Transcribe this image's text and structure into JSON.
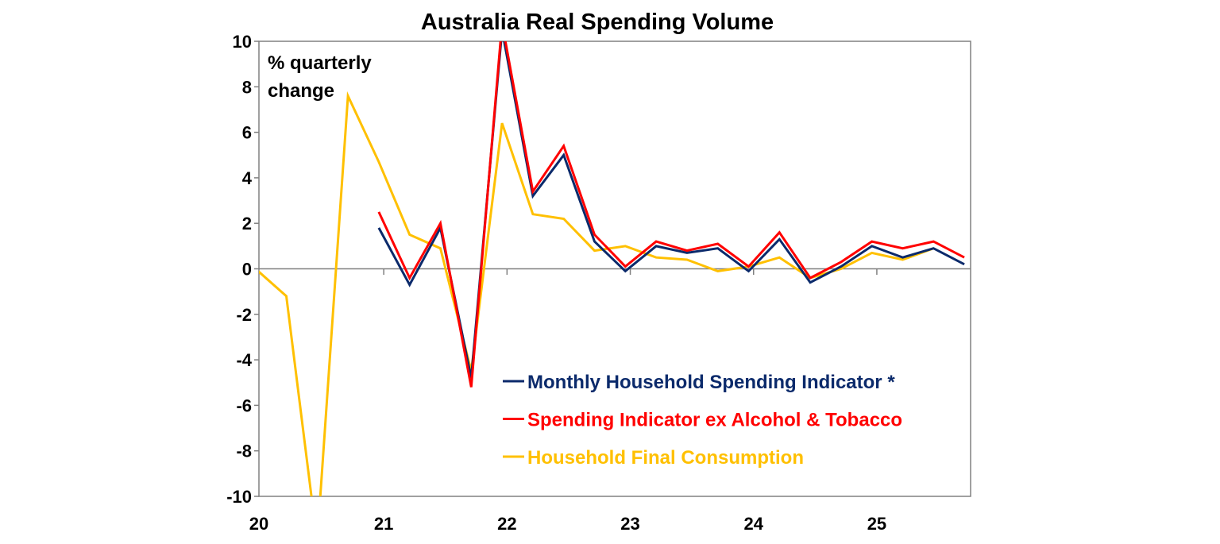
{
  "chart_data": {
    "type": "line",
    "title": "Australia Real Spending Volume",
    "ylabel": "% quarterly change",
    "ylabel_lines": [
      "% quarterly",
      "change"
    ],
    "ylim": [
      -10,
      10
    ],
    "yticks": [
      10,
      8,
      6,
      4,
      2,
      0,
      -2,
      -4,
      -6,
      -8,
      -10
    ],
    "xtick_labels": [
      "20",
      "21",
      "22",
      "23",
      "24",
      "25"
    ],
    "grid": false,
    "legend_placement": "bottom-right",
    "x": [
      "Dec-19",
      "Mar-20",
      "Jun-20",
      "Sep-20",
      "Dec-20",
      "Mar-21",
      "Jun-21",
      "Sep-21",
      "Dec-21",
      "Mar-22",
      "Jun-22",
      "Sep-22",
      "Dec-22",
      "Mar-23",
      "Jun-23",
      "Sep-23",
      "Dec-23",
      "Mar-24",
      "Jun-24",
      "Sep-24",
      "Dec-24",
      "Mar-25",
      "Jun-25",
      "Sep-25"
    ],
    "series": [
      {
        "name": "Monthly Household Spending Indicator *",
        "color": "#0b2a6b",
        "values": [
          null,
          null,
          null,
          null,
          1.8,
          -0.7,
          1.8,
          -4.8,
          10.5,
          3.2,
          5.0,
          1.2,
          -0.1,
          1.0,
          0.7,
          0.9,
          -0.1,
          1.3,
          -0.6,
          0.1,
          1.0,
          0.5,
          0.9,
          0.2
        ]
      },
      {
        "name": "Spending Indicator ex Alcohol & Tobacco",
        "color": "#ff0000",
        "values": [
          null,
          null,
          null,
          null,
          2.5,
          -0.4,
          2.0,
          -5.2,
          10.8,
          3.4,
          5.4,
          1.5,
          0.1,
          1.2,
          0.8,
          1.1,
          0.1,
          1.6,
          -0.4,
          0.3,
          1.2,
          0.9,
          1.2,
          0.5
        ]
      },
      {
        "name": "Household Final Consumption",
        "color": "#ffc000",
        "values": [
          0.0,
          -1.2,
          -12.0,
          7.6,
          4.7,
          1.5,
          0.9,
          -4.5,
          6.4,
          2.4,
          2.2,
          0.8,
          1.0,
          0.5,
          0.4,
          -0.1,
          0.1,
          0.5,
          -0.4,
          0.0,
          0.7,
          0.4,
          0.9,
          null
        ]
      }
    ]
  }
}
